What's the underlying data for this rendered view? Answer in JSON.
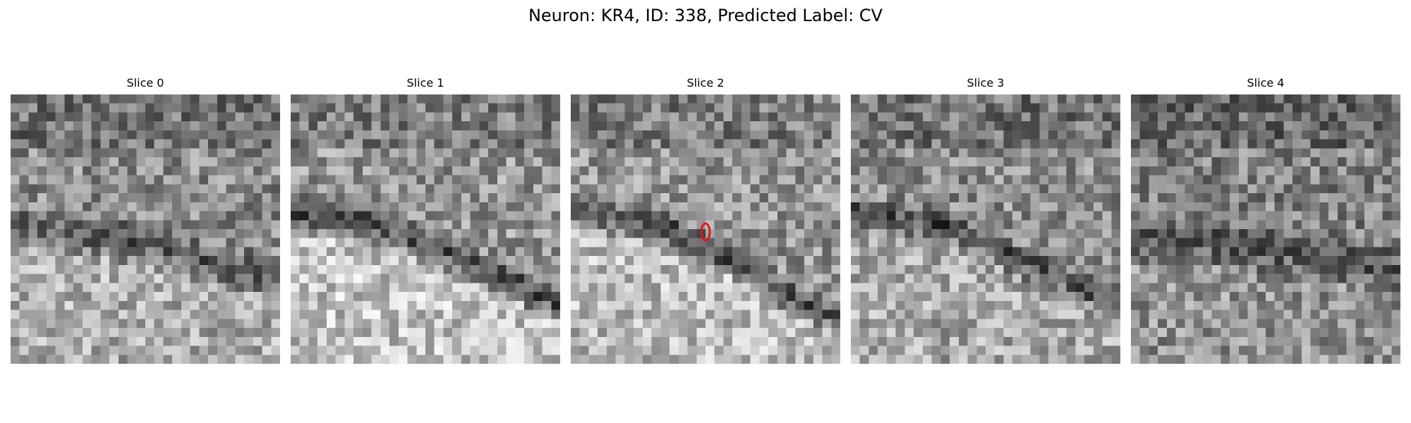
{
  "title": "Neuron: KR4, ID: 338, Predicted Label: CV",
  "colormap": "gray",
  "marker_color": "#e0181c",
  "slices": [
    {
      "label": "Slice 0",
      "has_marker": false
    },
    {
      "label": "Slice 1",
      "has_marker": false
    },
    {
      "label": "Slice 2",
      "has_marker": true
    },
    {
      "label": "Slice 3",
      "has_marker": false
    },
    {
      "label": "Slice 4",
      "has_marker": false
    }
  ]
}
